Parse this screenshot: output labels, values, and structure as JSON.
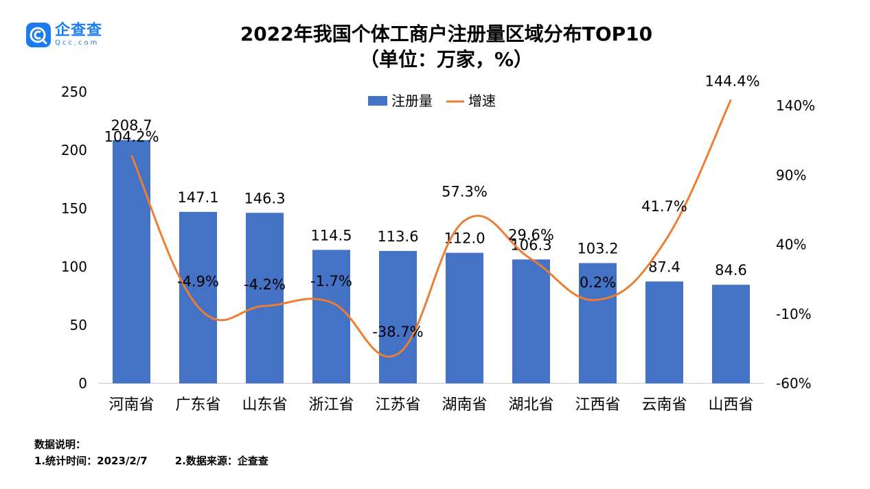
{
  "brand": {
    "name": "企查查",
    "domain": "Qcc.com"
  },
  "title_line1": "2022年我国个体工商户注册量区域分布TOP10",
  "title_line2": "（单位：万家，%）",
  "notes": {
    "heading": "数据说明：",
    "item1": "1.统计时间：2023/2/7",
    "item2": "2.数据来源：企查查"
  },
  "chart_data": {
    "type": "bar",
    "categories": [
      "河南省",
      "广东省",
      "山东省",
      "浙江省",
      "江苏省",
      "湖南省",
      "湖北省",
      "江西省",
      "云南省",
      "山西省"
    ],
    "series": [
      {
        "name": "注册量",
        "type": "bar",
        "axis": "left",
        "color": "#4472c4",
        "values": [
          208.7,
          147.1,
          146.3,
          114.5,
          113.6,
          112.0,
          106.3,
          103.2,
          87.4,
          84.6
        ],
        "labels": [
          "208.7",
          "147.1",
          "146.3",
          "114.5",
          "113.6",
          "112.0",
          "106.3",
          "103.2",
          "87.4",
          "84.6"
        ]
      },
      {
        "name": "增速",
        "type": "line",
        "axis": "right",
        "color": "#ed7d31",
        "values": [
          104.2,
          -4.9,
          -4.2,
          -1.7,
          -38.7,
          57.3,
          29.6,
          0.2,
          41.7,
          144.4
        ],
        "labels": [
          "104.2%",
          "-4.9%",
          "-4.2%",
          "-1.7%",
          "-38.7%",
          "57.3%",
          "29.6%",
          "0.2%",
          "41.7%",
          "144.4%"
        ]
      }
    ],
    "y_left": {
      "ylim": [
        0,
        250
      ],
      "ticks": [
        "0",
        "50",
        "100",
        "150",
        "200",
        "250"
      ]
    },
    "y_right": {
      "ylim": [
        -60,
        150
      ],
      "ticks": [
        "-60%",
        "-10%",
        "40%",
        "90%",
        "140%"
      ],
      "tick_values": [
        -60,
        -10,
        40,
        90,
        140
      ]
    },
    "legend": {
      "position": "top-center"
    },
    "grid": false
  }
}
